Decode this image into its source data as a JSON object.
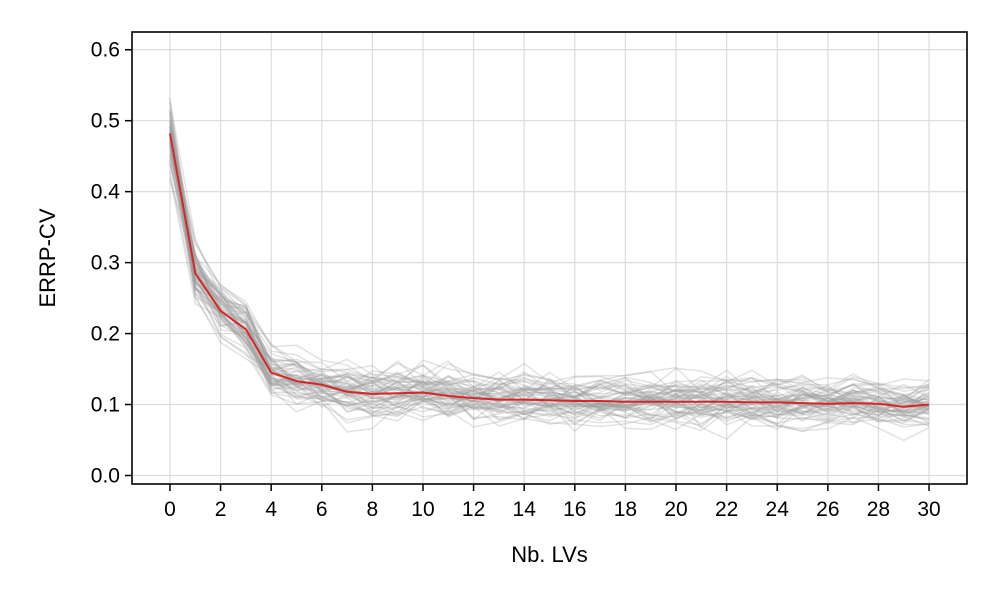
{
  "chart_data": {
    "type": "line",
    "title": "",
    "xlabel": "Nb. LVs",
    "ylabel": "ERRP-CV",
    "xlim": [
      -1.5,
      31.5
    ],
    "ylim": [
      -0.012,
      0.625
    ],
    "x_ticks": [
      0,
      2,
      4,
      6,
      8,
      10,
      12,
      14,
      16,
      18,
      20,
      22,
      24,
      26,
      28,
      30
    ],
    "y_ticks": [
      0.0,
      0.1,
      0.2,
      0.3,
      0.4,
      0.5,
      0.6
    ],
    "y_tick_labels": [
      "0.0",
      "0.1",
      "0.2",
      "0.3",
      "0.4",
      "0.5",
      "0.6"
    ],
    "grid": true,
    "legend": "none",
    "colors": {
      "mean_line": "#d62728",
      "replicate_lines": "#9e9e9e",
      "grid": "#dcdcdc",
      "axes": "#000000"
    },
    "replicates": {
      "count": 60,
      "x_range": [
        0,
        30
      ]
    },
    "series": [
      {
        "role": "mean",
        "x": [
          0,
          1,
          2,
          3,
          4,
          5,
          6,
          7,
          8,
          9,
          10,
          11,
          12,
          13,
          14,
          15,
          16,
          17,
          18,
          19,
          20,
          21,
          22,
          23,
          24,
          25,
          26,
          27,
          28,
          29,
          30
        ],
        "values": [
          0.482,
          0.285,
          0.232,
          0.206,
          0.145,
          0.133,
          0.128,
          0.118,
          0.115,
          0.116,
          0.117,
          0.112,
          0.109,
          0.107,
          0.107,
          0.106,
          0.105,
          0.105,
          0.104,
          0.104,
          0.104,
          0.104,
          0.104,
          0.103,
          0.103,
          0.102,
          0.101,
          0.102,
          0.101,
          0.097,
          0.1
        ]
      }
    ]
  }
}
